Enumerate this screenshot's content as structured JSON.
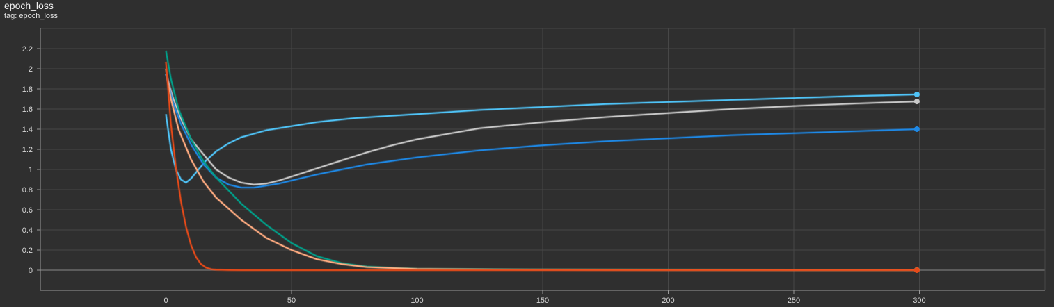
{
  "card": {
    "title": "epoch_loss",
    "subtitle": "tag: epoch_loss"
  },
  "chart_data": {
    "type": "line",
    "title": "epoch_loss",
    "xlabel": "",
    "ylabel": "",
    "xlim": [
      -50,
      350
    ],
    "ylim": [
      -0.2,
      2.4
    ],
    "x_ticks": [
      0,
      50,
      100,
      150,
      200,
      250,
      300
    ],
    "y_ticks": [
      0,
      0.2,
      0.4,
      0.6,
      0.8,
      1,
      1.2,
      1.4,
      1.6,
      1.8,
      2,
      2.2
    ],
    "y_tick_labels": [
      "0",
      "0.2",
      "0.4",
      "0.6",
      "0.8",
      "1",
      "1.2",
      "1.4",
      "1.6",
      "1.8",
      "2",
      "2.2"
    ],
    "grid": true,
    "legend": "none",
    "series": [
      {
        "color": "#4fc3f7",
        "x": [
          0,
          2,
          4,
          6,
          8,
          10,
          13,
          16,
          20,
          25,
          30,
          40,
          50,
          60,
          75,
          100,
          125,
          150,
          175,
          200,
          225,
          250,
          275,
          299
        ],
        "y": [
          1.55,
          1.2,
          1.0,
          0.9,
          0.87,
          0.91,
          1.0,
          1.09,
          1.18,
          1.26,
          1.32,
          1.39,
          1.43,
          1.47,
          1.51,
          1.55,
          1.59,
          1.62,
          1.65,
          1.67,
          1.69,
          1.71,
          1.73,
          1.745
        ]
      },
      {
        "color": "#c8c8c8",
        "x": [
          0,
          3,
          6,
          10,
          15,
          20,
          25,
          30,
          35,
          40,
          45,
          50,
          60,
          70,
          80,
          90,
          100,
          125,
          150,
          175,
          200,
          225,
          250,
          275,
          299
        ],
        "y": [
          1.95,
          1.7,
          1.5,
          1.3,
          1.15,
          1.0,
          0.92,
          0.87,
          0.85,
          0.86,
          0.89,
          0.93,
          1.01,
          1.09,
          1.17,
          1.24,
          1.3,
          1.41,
          1.47,
          1.52,
          1.56,
          1.6,
          1.63,
          1.655,
          1.675
        ]
      },
      {
        "color": "#1e88e5",
        "x": [
          0,
          3,
          6,
          10,
          15,
          20,
          25,
          30,
          35,
          40,
          45,
          50,
          60,
          70,
          80,
          100,
          125,
          150,
          175,
          200,
          225,
          250,
          275,
          299
        ],
        "y": [
          1.95,
          1.65,
          1.45,
          1.25,
          1.05,
          0.92,
          0.85,
          0.82,
          0.82,
          0.84,
          0.86,
          0.89,
          0.95,
          1.0,
          1.05,
          1.12,
          1.19,
          1.24,
          1.28,
          1.31,
          1.34,
          1.36,
          1.38,
          1.4
        ]
      },
      {
        "color": "#00a08a",
        "x": [
          0,
          2,
          5,
          10,
          15,
          20,
          30,
          40,
          50,
          60,
          70,
          80,
          100,
          150,
          200,
          250,
          299
        ],
        "y": [
          2.18,
          1.9,
          1.6,
          1.3,
          1.08,
          0.92,
          0.66,
          0.45,
          0.27,
          0.14,
          0.07,
          0.035,
          0.012,
          0.006,
          0.004,
          0.003,
          0.002
        ]
      },
      {
        "color": "#ffab80",
        "x": [
          0,
          2,
          5,
          10,
          15,
          20,
          30,
          40,
          50,
          60,
          70,
          80,
          100,
          150,
          200,
          250,
          299
        ],
        "y": [
          2.0,
          1.7,
          1.4,
          1.1,
          0.88,
          0.72,
          0.5,
          0.32,
          0.2,
          0.11,
          0.06,
          0.03,
          0.012,
          0.005,
          0.003,
          0.002,
          0.002
        ]
      },
      {
        "color": "#e64a19",
        "x": [
          0,
          2,
          4,
          6,
          8,
          10,
          12,
          14,
          16,
          18,
          20,
          25,
          30,
          50,
          100,
          200,
          299
        ],
        "y": [
          2.07,
          1.45,
          1.02,
          0.68,
          0.43,
          0.25,
          0.13,
          0.06,
          0.025,
          0.01,
          0.004,
          0.001,
          0.0,
          0.0,
          0.0,
          0.0,
          0.0
        ]
      }
    ]
  }
}
